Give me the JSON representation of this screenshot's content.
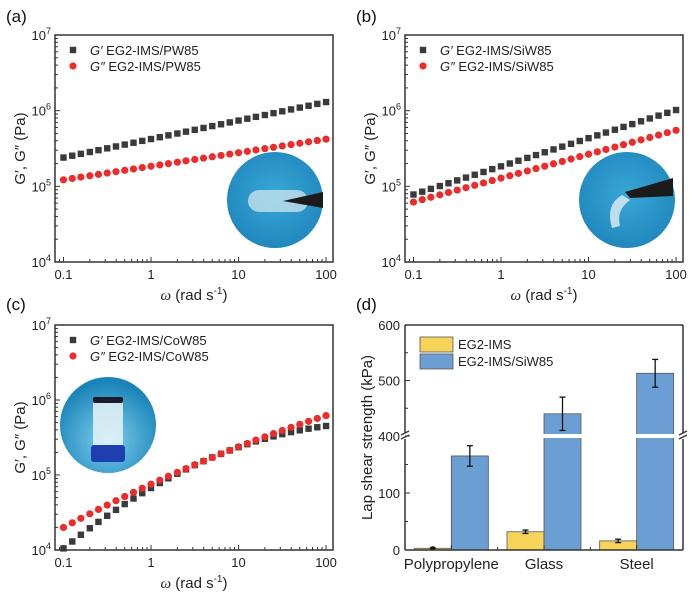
{
  "chart_data": [
    {
      "id": "a",
      "panel_label": "(a)",
      "type": "scatter",
      "xscale": "log",
      "yscale": "log",
      "xlim": [
        0.08,
        120
      ],
      "ylim": [
        10000,
        10000000
      ],
      "xticks": [
        0.1,
        1,
        10,
        100
      ],
      "xtick_labels": [
        "0.1",
        "1",
        "10",
        "100"
      ],
      "yticks": [
        10000,
        100000,
        1000000,
        10000000
      ],
      "ytick_labels": [
        "10^4",
        "10^5",
        "10^6",
        "10^7"
      ],
      "xlabel": "ω (rad s⁻¹)",
      "ylabel": "G′, G″ (Pa)",
      "legend_position": "top-left",
      "inset": "photo: transparent gel film held by tweezers on blue background",
      "inset_position": "bottom-right",
      "x": [
        0.1,
        0.126,
        0.158,
        0.2,
        0.251,
        0.316,
        0.398,
        0.501,
        0.631,
        0.794,
        1,
        1.26,
        1.58,
        2,
        2.51,
        3.16,
        3.98,
        5.01,
        6.31,
        7.94,
        10,
        12.6,
        15.8,
        20,
        25.1,
        31.6,
        39.8,
        50.1,
        63.1,
        79.4,
        100
      ],
      "series": [
        {
          "name": "G′ EG2-IMS/PW85",
          "prefix": "G′",
          "label": "EG2-IMS/PW85",
          "marker": "square",
          "color": "#3a3a3a",
          "start": 240000,
          "end": 1300000,
          "curvature": 0
        },
        {
          "name": "G″ EG2-IMS/PW85",
          "prefix": "G″",
          "label": "EG2-IMS/PW85",
          "marker": "circle",
          "color": "#ee2a2a",
          "start": 122000,
          "end": 420000,
          "curvature": 0
        }
      ]
    },
    {
      "id": "b",
      "panel_label": "(b)",
      "type": "scatter",
      "xscale": "log",
      "yscale": "log",
      "xlim": [
        0.08,
        120
      ],
      "ylim": [
        10000,
        10000000
      ],
      "xticks": [
        0.1,
        1,
        10,
        100
      ],
      "xtick_labels": [
        "0.1",
        "1",
        "10",
        "100"
      ],
      "yticks": [
        10000,
        100000,
        1000000,
        10000000
      ],
      "ytick_labels": [
        "10^4",
        "10^5",
        "10^6",
        "10^7"
      ],
      "xlabel": "ω (rad s⁻¹)",
      "ylabel": "G′, G″ (Pa)",
      "legend_position": "top-left",
      "inset": "photo: bent transparent gel held by tweezers on blue background",
      "inset_position": "bottom-right",
      "x": [
        0.1,
        0.126,
        0.158,
        0.2,
        0.251,
        0.316,
        0.398,
        0.501,
        0.631,
        0.794,
        1,
        1.26,
        1.58,
        2,
        2.51,
        3.16,
        3.98,
        5.01,
        6.31,
        7.94,
        10,
        12.6,
        15.8,
        20,
        25.1,
        31.6,
        39.8,
        50.1,
        63.1,
        79.4,
        100
      ],
      "series": [
        {
          "name": "G′ EG2-IMS/SiW85",
          "prefix": "G′",
          "label": "EG2-IMS/SiW85",
          "marker": "square",
          "color": "#3a3a3a",
          "start": 78000,
          "end": 1020000,
          "curvature": 0
        },
        {
          "name": "G″ EG2-IMS/SiW85",
          "prefix": "G″",
          "label": "EG2-IMS/SiW85",
          "marker": "circle",
          "color": "#ee2a2a",
          "start": 62000,
          "end": 550000,
          "curvature": 0
        }
      ]
    },
    {
      "id": "c",
      "panel_label": "(c)",
      "type": "scatter",
      "xscale": "log",
      "yscale": "log",
      "xlim": [
        0.08,
        120
      ],
      "ylim": [
        10000,
        10000000
      ],
      "xticks": [
        0.1,
        1,
        10,
        100
      ],
      "xtick_labels": [
        "0.1",
        "1",
        "10",
        "100"
      ],
      "yticks": [
        10000,
        100000,
        1000000,
        10000000
      ],
      "ytick_labels": [
        "10^4",
        "10^5",
        "10^6",
        "10^7"
      ],
      "xlabel": "ω (rad s⁻¹)",
      "ylabel": "G′, G″ (Pa)",
      "legend_position": "top-left",
      "inset": "photo: inverted vial containing gel on blue background",
      "inset_position": "center-left",
      "x": [
        0.1,
        0.126,
        0.158,
        0.2,
        0.251,
        0.316,
        0.398,
        0.501,
        0.631,
        0.794,
        1,
        1.26,
        1.58,
        2,
        2.51,
        3.16,
        3.98,
        5.01,
        6.31,
        7.94,
        10,
        12.6,
        15.8,
        20,
        25.1,
        31.6,
        39.8,
        50.1,
        63.1,
        79.4,
        100
      ],
      "series": [
        {
          "name": "G′ EG2-IMS/CoW85",
          "prefix": "G′",
          "label": "EG2-IMS/CoW85",
          "marker": "square",
          "color": "#3a3a3a",
          "start": 10500,
          "end": 450000,
          "curvature": -0.18
        },
        {
          "name": "G″ EG2-IMS/CoW85",
          "prefix": "G″",
          "label": "EG2-IMS/CoW85",
          "marker": "circle",
          "color": "#ee2a2a",
          "start": 20000,
          "end": 620000,
          "curvature": -0.06
        }
      ]
    },
    {
      "id": "d",
      "panel_label": "(d)",
      "type": "bar",
      "categories": [
        "Polypropylene",
        "Glass",
        "Steel"
      ],
      "ylabel": "Lap shear strength (kPa)",
      "xlabel": "",
      "broken_axis": {
        "lower": [
          0,
          200
        ],
        "upper": [
          400,
          600
        ]
      },
      "yticks": [
        0,
        100,
        400,
        500,
        600
      ],
      "ytick_labels": [
        "0",
        "100",
        "400",
        "500",
        "600"
      ],
      "legend_position": "top-left",
      "series": [
        {
          "name": "EG2-IMS",
          "color": "#f7d35a",
          "values": [
            3,
            32,
            16
          ],
          "errors": [
            1,
            3,
            3
          ]
        },
        {
          "name": "EG2-IMS/SiW85",
          "color": "#6b9fd3",
          "values": [
            165,
            440,
            513
          ],
          "errors": [
            18,
            30,
            25
          ]
        }
      ]
    }
  ]
}
